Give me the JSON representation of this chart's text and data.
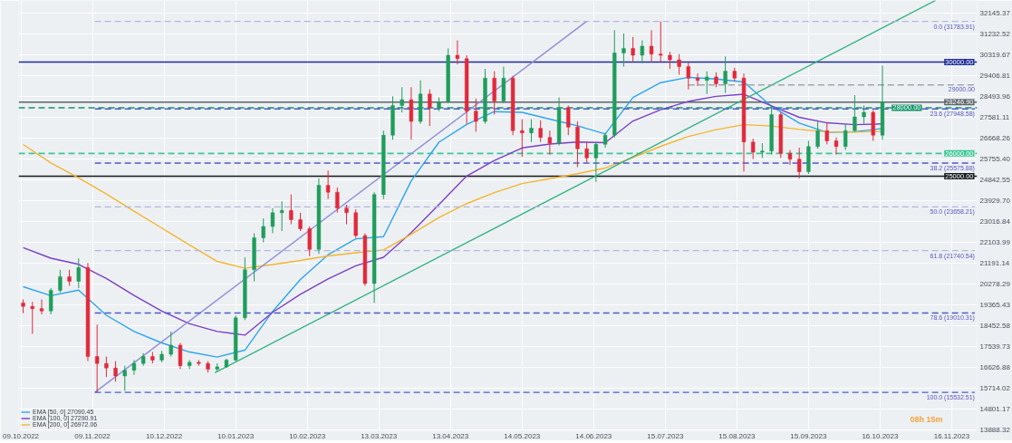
{
  "chart_data": {
    "type": "candlestick",
    "x": [
      "2022-10-10",
      "2022-10-14",
      "2022-10-18",
      "2022-10-22",
      "2022-10-26",
      "2022-10-30",
      "2022-11-03",
      "2022-11-07",
      "2022-11-11",
      "2022-11-15",
      "2022-11-19",
      "2022-11-23",
      "2022-11-27",
      "2022-12-01",
      "2022-12-05",
      "2022-12-09",
      "2022-12-13",
      "2022-12-17",
      "2022-12-21",
      "2022-12-25",
      "2022-12-29",
      "2023-01-02",
      "2023-01-06",
      "2023-01-10",
      "2023-01-14",
      "2023-01-18",
      "2023-01-22",
      "2023-01-26",
      "2023-01-30",
      "2023-02-03",
      "2023-02-07",
      "2023-02-11",
      "2023-02-15",
      "2023-02-19",
      "2023-02-23",
      "2023-02-27",
      "2023-03-03",
      "2023-03-07",
      "2023-03-11",
      "2023-03-15",
      "2023-03-19",
      "2023-03-23",
      "2023-03-27",
      "2023-03-31",
      "2023-04-04",
      "2023-04-08",
      "2023-04-12",
      "2023-04-16",
      "2023-04-20",
      "2023-04-24",
      "2023-04-28",
      "2023-05-02",
      "2023-05-06",
      "2023-05-10",
      "2023-05-14",
      "2023-05-18",
      "2023-05-22",
      "2023-05-26",
      "2023-05-30",
      "2023-06-03",
      "2023-06-07",
      "2023-06-11",
      "2023-06-15",
      "2023-06-19",
      "2023-06-23",
      "2023-06-27",
      "2023-07-01",
      "2023-07-05",
      "2023-07-09",
      "2023-07-13",
      "2023-07-17",
      "2023-07-21",
      "2023-07-25",
      "2023-07-29",
      "2023-08-02",
      "2023-08-06",
      "2023-08-10",
      "2023-08-14",
      "2023-08-18",
      "2023-08-22",
      "2023-08-26",
      "2023-08-30",
      "2023-09-03",
      "2023-09-07",
      "2023-09-11",
      "2023-09-15",
      "2023-09-19",
      "2023-09-23",
      "2023-09-27",
      "2023-10-01",
      "2023-10-05",
      "2023-10-09",
      "2023-10-13",
      "2023-10-17"
    ],
    "ohlc": [
      [
        19450,
        19600,
        19000,
        19300
      ],
      [
        19300,
        19500,
        18100,
        19200
      ],
      [
        19200,
        19600,
        18950,
        19100
      ],
      [
        19100,
        20100,
        18950,
        20000
      ],
      [
        20000,
        20900,
        19900,
        20600
      ],
      [
        20600,
        20900,
        20200,
        20400
      ],
      [
        20400,
        21400,
        20100,
        21000
      ],
      [
        21000,
        21200,
        16900,
        17100
      ],
      [
        17100,
        18500,
        15530,
        16800
      ],
      [
        16800,
        17100,
        16200,
        16600
      ],
      [
        16600,
        16900,
        16000,
        16250
      ],
      [
        16250,
        16700,
        15600,
        16500
      ],
      [
        16500,
        16950,
        16300,
        16800
      ],
      [
        16800,
        17250,
        16700,
        17100
      ],
      [
        17100,
        17300,
        16800,
        16950
      ],
      [
        16950,
        17350,
        16850,
        17200
      ],
      [
        17200,
        18200,
        17100,
        17600
      ],
      [
        17600,
        17700,
        16550,
        16700
      ],
      [
        16700,
        16950,
        16550,
        16850
      ],
      [
        16850,
        16950,
        16700,
        16800
      ],
      [
        16800,
        16900,
        16400,
        16550
      ],
      [
        16550,
        16800,
        16450,
        16650
      ],
      [
        16650,
        17000,
        16600,
        16950
      ],
      [
        16950,
        18900,
        16900,
        18800
      ],
      [
        18800,
        21450,
        18700,
        20900
      ],
      [
        20900,
        22500,
        20400,
        22300
      ],
      [
        22300,
        23150,
        22100,
        22800
      ],
      [
        22800,
        23600,
        22500,
        23400
      ],
      [
        23400,
        23900,
        22600,
        23500
      ],
      [
        23500,
        24200,
        22900,
        23100
      ],
      [
        23100,
        23400,
        22600,
        22700
      ],
      [
        22700,
        22800,
        21500,
        21800
      ],
      [
        21800,
        24900,
        21600,
        24600
      ],
      [
        24600,
        25250,
        24000,
        24300
      ],
      [
        24300,
        24500,
        23400,
        23600
      ],
      [
        23600,
        23750,
        22900,
        23400
      ],
      [
        23400,
        23550,
        22300,
        22400
      ],
      [
        22400,
        22500,
        20200,
        20300
      ],
      [
        20300,
        24300,
        19450,
        24200
      ],
      [
        24200,
        27000,
        24000,
        26800
      ],
      [
        26800,
        28500,
        26600,
        28100
      ],
      [
        28100,
        28900,
        27800,
        28350
      ],
      [
        28350,
        28900,
        26600,
        27400
      ],
      [
        27400,
        29200,
        27300,
        28600
      ],
      [
        28600,
        28800,
        27200,
        28000
      ],
      [
        28000,
        28450,
        27850,
        28250
      ],
      [
        28250,
        30600,
        28200,
        30300
      ],
      [
        30300,
        30950,
        29900,
        30150
      ],
      [
        30150,
        30300,
        27300,
        27850
      ],
      [
        27850,
        28400,
        26950,
        27400
      ],
      [
        27400,
        29700,
        27300,
        29300
      ],
      [
        29300,
        29600,
        27700,
        28300
      ],
      [
        28300,
        29800,
        28200,
        29300
      ],
      [
        29300,
        29400,
        26800,
        27000
      ],
      [
        27000,
        27500,
        25850,
        26900
      ],
      [
        26900,
        27500,
        26500,
        27100
      ],
      [
        27100,
        27450,
        26500,
        26700
      ],
      [
        26700,
        27000,
        25950,
        26450
      ],
      [
        26450,
        28450,
        26350,
        28000
      ],
      [
        28000,
        28100,
        26800,
        27150
      ],
      [
        27150,
        27400,
        25400,
        26200
      ],
      [
        26200,
        26500,
        25600,
        25800
      ],
      [
        25800,
        26500,
        24750,
        26400
      ],
      [
        26400,
        26900,
        26250,
        26800
      ],
      [
        26800,
        31400,
        26700,
        30400
      ],
      [
        30400,
        31250,
        29800,
        30600
      ],
      [
        30600,
        31100,
        30000,
        30300
      ],
      [
        30300,
        30950,
        29950,
        30700
      ],
      [
        30700,
        31400,
        30000,
        30350
      ],
      [
        30350,
        31780,
        30000,
        30300
      ],
      [
        30300,
        30450,
        29700,
        30100
      ],
      [
        30100,
        30350,
        29450,
        29800
      ],
      [
        29800,
        30000,
        28800,
        29300
      ],
      [
        29300,
        29500,
        28950,
        29200
      ],
      [
        29200,
        29600,
        28600,
        29350
      ],
      [
        29350,
        29550,
        28900,
        29050
      ],
      [
        29050,
        30250,
        28650,
        29600
      ],
      [
        29600,
        29750,
        29150,
        29300
      ],
      [
        29300,
        29500,
        25200,
        26500
      ],
      [
        26500,
        26650,
        25750,
        26050
      ],
      [
        26050,
        26450,
        25800,
        26100
      ],
      [
        26100,
        28100,
        25950,
        27700
      ],
      [
        27700,
        27800,
        25800,
        26000
      ],
      [
        26000,
        26150,
        25500,
        25750
      ],
      [
        25750,
        26250,
        24900,
        25200
      ],
      [
        25200,
        26550,
        25100,
        26300
      ],
      [
        26300,
        27400,
        26200,
        27000
      ],
      [
        27000,
        27350,
        26400,
        26550
      ],
      [
        26550,
        26700,
        25950,
        26300
      ],
      [
        26300,
        27300,
        26150,
        27000
      ],
      [
        27000,
        28550,
        26950,
        27600
      ],
      [
        27600,
        28100,
        27300,
        27800
      ],
      [
        27800,
        27900,
        26550,
        26800
      ],
      [
        26800,
        29840,
        26600,
        28246.9
      ]
    ],
    "series": [
      {
        "name": "EMA [50, 0] 27090.45",
        "type": "line",
        "color": "#2ba6ee",
        "x": [
          "2022-10-10",
          "2022-10-22",
          "2022-11-03",
          "2022-11-15",
          "2022-11-27",
          "2022-12-09",
          "2022-12-21",
          "2023-01-02",
          "2023-01-14",
          "2023-01-26",
          "2023-02-07",
          "2023-02-19",
          "2023-03-03",
          "2023-03-15",
          "2023-03-27",
          "2023-04-08",
          "2023-04-20",
          "2023-05-02",
          "2023-05-14",
          "2023-05-26",
          "2023-06-07",
          "2023-06-19",
          "2023-07-01",
          "2023-07-13",
          "2023-07-25",
          "2023-08-06",
          "2023-08-18",
          "2023-08-30",
          "2023-09-11",
          "2023-09-23",
          "2023-10-05",
          "2023-10-17"
        ],
        "values": [
          20160,
          19770,
          20010,
          18910,
          18200,
          17700,
          17300,
          17080,
          17380,
          19080,
          20480,
          21560,
          22260,
          22350,
          24800,
          26490,
          27270,
          27830,
          27800,
          27500,
          27210,
          26850,
          28450,
          29100,
          29330,
          29260,
          29130,
          28060,
          27330,
          26920,
          26950,
          27090.45
        ]
      },
      {
        "name": "EMA [100, 0] 27290.91",
        "type": "line",
        "color": "#7b3fc6",
        "x": [
          "2022-10-10",
          "2022-10-22",
          "2022-11-03",
          "2022-11-15",
          "2022-11-27",
          "2022-12-09",
          "2022-12-21",
          "2023-01-02",
          "2023-01-14",
          "2023-01-26",
          "2023-02-07",
          "2023-02-19",
          "2023-03-03",
          "2023-03-15",
          "2023-03-27",
          "2023-04-08",
          "2023-04-20",
          "2023-05-02",
          "2023-05-14",
          "2023-05-26",
          "2023-06-07",
          "2023-06-19",
          "2023-07-01",
          "2023-07-13",
          "2023-07-25",
          "2023-08-06",
          "2023-08-18",
          "2023-08-30",
          "2023-09-11",
          "2023-09-23",
          "2023-10-05",
          "2023-10-17"
        ],
        "values": [
          21870,
          21410,
          21140,
          20520,
          19780,
          19090,
          18540,
          18200,
          18040,
          19040,
          19830,
          20500,
          21080,
          21450,
          22530,
          23760,
          25010,
          25690,
          26240,
          26410,
          26500,
          26470,
          27420,
          27910,
          28280,
          28500,
          28590,
          28080,
          27580,
          27340,
          27260,
          27290.91
        ]
      },
      {
        "name": "EMA [200, 0] 26972.06",
        "type": "line",
        "color": "#f5b52e",
        "x": [
          "2022-10-10",
          "2022-10-22",
          "2022-11-03",
          "2022-11-15",
          "2022-11-27",
          "2022-12-09",
          "2022-12-21",
          "2023-01-02",
          "2023-01-14",
          "2023-01-26",
          "2023-02-07",
          "2023-02-19",
          "2023-03-03",
          "2023-03-15",
          "2023-03-27",
          "2023-04-08",
          "2023-04-20",
          "2023-05-02",
          "2023-05-14",
          "2023-05-26",
          "2023-06-07",
          "2023-06-19",
          "2023-07-01",
          "2023-07-13",
          "2023-07-25",
          "2023-08-06",
          "2023-08-18",
          "2023-08-30",
          "2023-09-11",
          "2023-09-23",
          "2023-10-05",
          "2023-10-17"
        ],
        "values": [
          26390,
          25580,
          24930,
          24220,
          23470,
          22730,
          21990,
          21270,
          20970,
          21130,
          21310,
          21510,
          21650,
          21770,
          22460,
          23190,
          23800,
          24280,
          24680,
          24890,
          25110,
          25360,
          25820,
          26310,
          26740,
          27040,
          27260,
          27200,
          27050,
          26940,
          26930,
          26972.06
        ]
      },
      {
        "type": "line",
        "color": "#8e8ed8",
        "x": [
          "2022-11-10",
          "2023-06-11"
        ],
        "values": [
          15530,
          31790
        ]
      },
      {
        "type": "line",
        "color": "#2fb37e",
        "x": [
          "2023-01-01",
          "2023-11-09"
        ],
        "values": [
          16390,
          32700
        ]
      },
      {
        "type": "line",
        "color": "#9ea6ae",
        "line_style": "dashed",
        "x": [
          "2023-07-25",
          "2023-11-26"
        ],
        "values": [
          29000,
          29000
        ]
      },
      {
        "type": "line",
        "color": "#b4b6de",
        "line_style": "dashed",
        "x": [
          "2022-11-10",
          "2023-11-26"
        ],
        "values": [
          31783.91,
          31783.91
        ]
      },
      {
        "type": "line",
        "color": "#4b5cc9",
        "line_style": "dashed",
        "x": [
          "2022-11-10",
          "2023-11-26"
        ],
        "values": [
          27948.58,
          27948.58
        ]
      },
      {
        "type": "line",
        "color": "#4b5cc9",
        "line_style": "dashed",
        "x": [
          "2022-11-10",
          "2023-11-26"
        ],
        "values": [
          25575.88,
          25575.88
        ]
      },
      {
        "type": "line",
        "color": "#b4b6de",
        "line_style": "dashed",
        "x": [
          "2022-11-10",
          "2023-11-26"
        ],
        "values": [
          23658.21,
          23658.21
        ]
      },
      {
        "type": "line",
        "color": "#b4b6de",
        "line_style": "dashed",
        "x": [
          "2022-11-10",
          "2023-11-26"
        ],
        "values": [
          21740.54,
          21740.54
        ]
      },
      {
        "type": "line",
        "color": "#4b5cc9",
        "line_style": "dashed",
        "x": [
          "2022-11-10",
          "2023-11-26"
        ],
        "values": [
          19010.31,
          19010.31
        ]
      },
      {
        "type": "line",
        "color": "#4b5cc9",
        "line_style": "dashed",
        "x": [
          "2022-11-10",
          "2023-11-26"
        ],
        "values": [
          15532.51,
          15532.51
        ]
      }
    ],
    "ref_lines": [
      {
        "axis": "y",
        "value": 30000,
        "label": "30000.00",
        "color": "#1f2d96",
        "line_style": "solid"
      },
      {
        "axis": "y",
        "value": 28246.9,
        "label": "28246.90",
        "color": "#5d646a",
        "line_style": "solid"
      },
      {
        "axis": "y",
        "value": 28000,
        "label": "28000.00",
        "color": "#159468",
        "line_style": "dashed"
      },
      {
        "axis": "y",
        "value": 26000,
        "label": "26000.00",
        "color": "#3cc796",
        "line_style": "dashed"
      },
      {
        "axis": "y",
        "value": 25000,
        "label": "25000.00",
        "color": "#16191c",
        "line_style": "solid"
      }
    ],
    "annotations": [
      {
        "text": "0.0 (31783.91)",
        "x": "2023-11-26",
        "y": 31783.91
      },
      {
        "text": "29000.00",
        "x": "2023-11-26",
        "y": 29000
      },
      {
        "text": "23.6 (27948.58)",
        "x": "2023-11-26",
        "y": 27948.58
      },
      {
        "text": "38.2 (25575.88)",
        "x": "2023-11-26",
        "y": 25575.88
      },
      {
        "text": "50.0 (23658.21)",
        "x": "2023-11-26",
        "y": 23658.21
      },
      {
        "text": "61.8 (21740.54)",
        "x": "2023-11-26",
        "y": 21740.54
      },
      {
        "text": "78.6 (19010.31)",
        "x": "2023-11-26",
        "y": 19010.31
      },
      {
        "text": "100.0 (15532.51)",
        "x": "2023-11-26",
        "y": 15532.51
      },
      "08h 15m"
    ],
    "xlim": [
      "2022-10-08",
      "2023-11-27"
    ],
    "ylim": [
      13850,
      32700
    ],
    "xticks": [
      {
        "value": "2022-10-09",
        "label": "09.10.2022"
      },
      {
        "value": "2022-11-09",
        "label": "09.11.2022"
      },
      {
        "value": "2022-12-10",
        "label": "10.12.2022"
      },
      {
        "value": "2023-01-10",
        "label": "10.01.2023"
      },
      {
        "value": "2023-02-10",
        "label": "10.02.2023"
      },
      {
        "value": "2023-03-13",
        "label": "13.03.2023"
      },
      {
        "value": "2023-04-13",
        "label": "13.04.2023"
      },
      {
        "value": "2023-05-14",
        "label": "14.05.2023"
      },
      {
        "value": "2023-06-14",
        "label": "14.06.2023"
      },
      {
        "value": "2023-07-15",
        "label": "15.07.2023"
      },
      {
        "value": "2023-08-15",
        "label": "15.08.2023"
      },
      {
        "value": "2023-09-15",
        "label": "15.09.2023"
      },
      {
        "value": "2023-10-16",
        "label": "16.10.2023"
      },
      {
        "value": "2023-11-16",
        "label": "16.11.2023"
      }
    ],
    "yticks": [
      32145.37,
      31232.52,
      30319.67,
      29406.81,
      28493.96,
      27581.11,
      26668.26,
      {
        "value": 25755.4,
        "label": "25755.40"
      },
      24842.55,
      {
        "value": 23929.7,
        "label": "23929.70"
      },
      23016.84,
      22103.99,
      21191.14,
      20278.29,
      19365.43,
      18452.58,
      17539.73,
      16626.88,
      15714.02,
      14801.17,
      13888.32
    ],
    "grid": true,
    "legend": "bottom left"
  }
}
